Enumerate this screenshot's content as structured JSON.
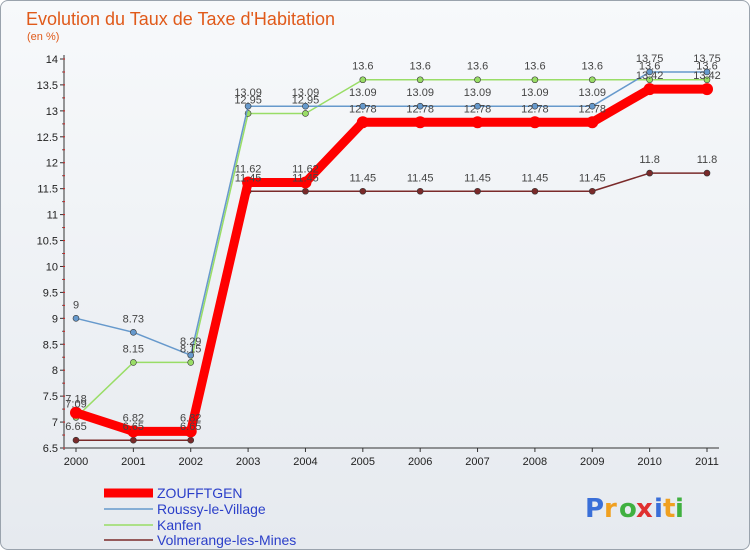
{
  "chart_data": {
    "type": "line",
    "title": "Evolution du Taux de Taxe d'Habitation",
    "subtitle": "(en %)",
    "categories": [
      "2000",
      "2001",
      "2002",
      "2003",
      "2004",
      "2005",
      "2006",
      "2007",
      "2008",
      "2009",
      "2010",
      "2011"
    ],
    "ylim": [
      6.5,
      14
    ],
    "yticks": [
      "6.5",
      "7",
      "7.5",
      "8",
      "8.5",
      "9",
      "9.5",
      "10",
      "10.5",
      "11",
      "11.5",
      "12",
      "12.5",
      "13",
      "13.5",
      "14"
    ],
    "grid": false,
    "series": [
      {
        "name": "ZOUFFTGEN",
        "color": "#ff0000",
        "values": [
          7.18,
          6.82,
          6.82,
          11.62,
          11.62,
          12.78,
          12.78,
          12.78,
          12.78,
          12.78,
          13.42,
          13.42
        ],
        "labels": [
          "7.18",
          "6.82",
          "6.82",
          "11.62",
          "11.62",
          "12.78",
          "12.78",
          "12.78",
          "12.78",
          "12.78",
          "13.42",
          "13.42"
        ]
      },
      {
        "name": "Roussy-le-Village",
        "color": "#6699cc",
        "values": [
          9,
          8.73,
          8.29,
          13.09,
          13.09,
          13.09,
          13.09,
          13.09,
          13.09,
          13.09,
          13.75,
          13.75
        ],
        "labels": [
          "9",
          "8.73",
          "8.29",
          "13.09",
          "13.09",
          "13.09",
          "13.09",
          "13.09",
          "13.09",
          "13.09",
          "13.75",
          "13.75"
        ]
      },
      {
        "name": "Kanfen",
        "color": "#99dd66",
        "values": [
          7.09,
          8.15,
          8.15,
          12.95,
          12.95,
          13.6,
          13.6,
          13.6,
          13.6,
          13.6,
          13.6,
          13.6
        ],
        "labels": [
          "7.09",
          "8.15",
          "8.15",
          "12.95",
          "12.95",
          "13.6",
          "13.6",
          "13.6",
          "13.6",
          "13.6",
          "13.6",
          "13.6"
        ]
      },
      {
        "name": "Volmerange-les-Mines",
        "color": "#7a2a2a",
        "values": [
          6.65,
          6.65,
          6.65,
          11.45,
          11.45,
          11.45,
          11.45,
          11.45,
          11.45,
          11.45,
          11.8,
          11.8
        ],
        "labels": [
          "6.65",
          "6.65",
          "6.65",
          "11.45",
          "11.45",
          "11.45",
          "11.45",
          "11.45",
          "11.45",
          "11.45",
          "11.8",
          "11.8"
        ]
      }
    ]
  },
  "logo": {
    "letters": [
      "P",
      "r",
      "o",
      "x",
      "i",
      "t",
      "i"
    ],
    "colors": [
      "#3a6fd8",
      "#f0a020",
      "#40b040",
      "#e03030",
      "#3a6fd8",
      "#f0a020",
      "#40b040"
    ]
  }
}
